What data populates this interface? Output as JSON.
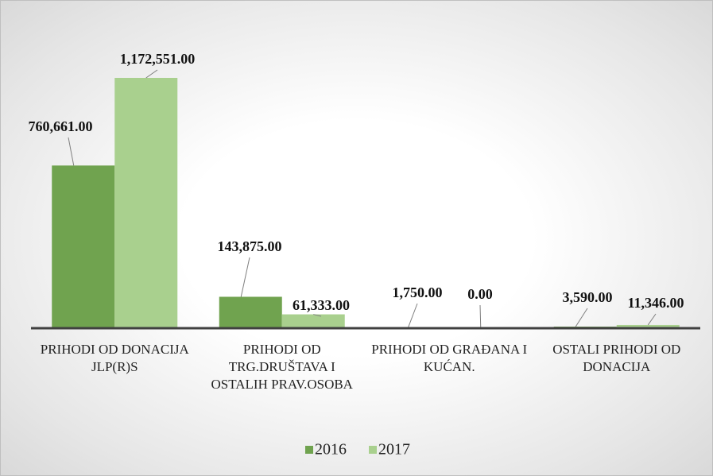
{
  "chart_data": {
    "type": "bar",
    "categories": [
      "PRIHODI OD DONACIJA JLP(R)S",
      "PRIHODI OD TRG.DRUŠTAVA I OSTALIH PRAV.OSOBA",
      "PRIHODI OD GRAĐANA I KUĆAN.",
      "OSTALI PRIHODI OD DONACIJA"
    ],
    "series": [
      {
        "name": "2016",
        "color": "#70a34f",
        "values": [
          760661,
          143875,
          1750,
          3590
        ],
        "value_labels": [
          "760,661.00",
          "143,875.00",
          "1,750.00",
          "3,590.00"
        ]
      },
      {
        "name": "2017",
        "color": "#a9d08e",
        "values": [
          1172551,
          61333,
          0,
          11346
        ],
        "value_labels": [
          "1,172,551.00",
          "61,333.00",
          "0.00",
          "11,346.00"
        ]
      }
    ],
    "legend": "bottom"
  }
}
